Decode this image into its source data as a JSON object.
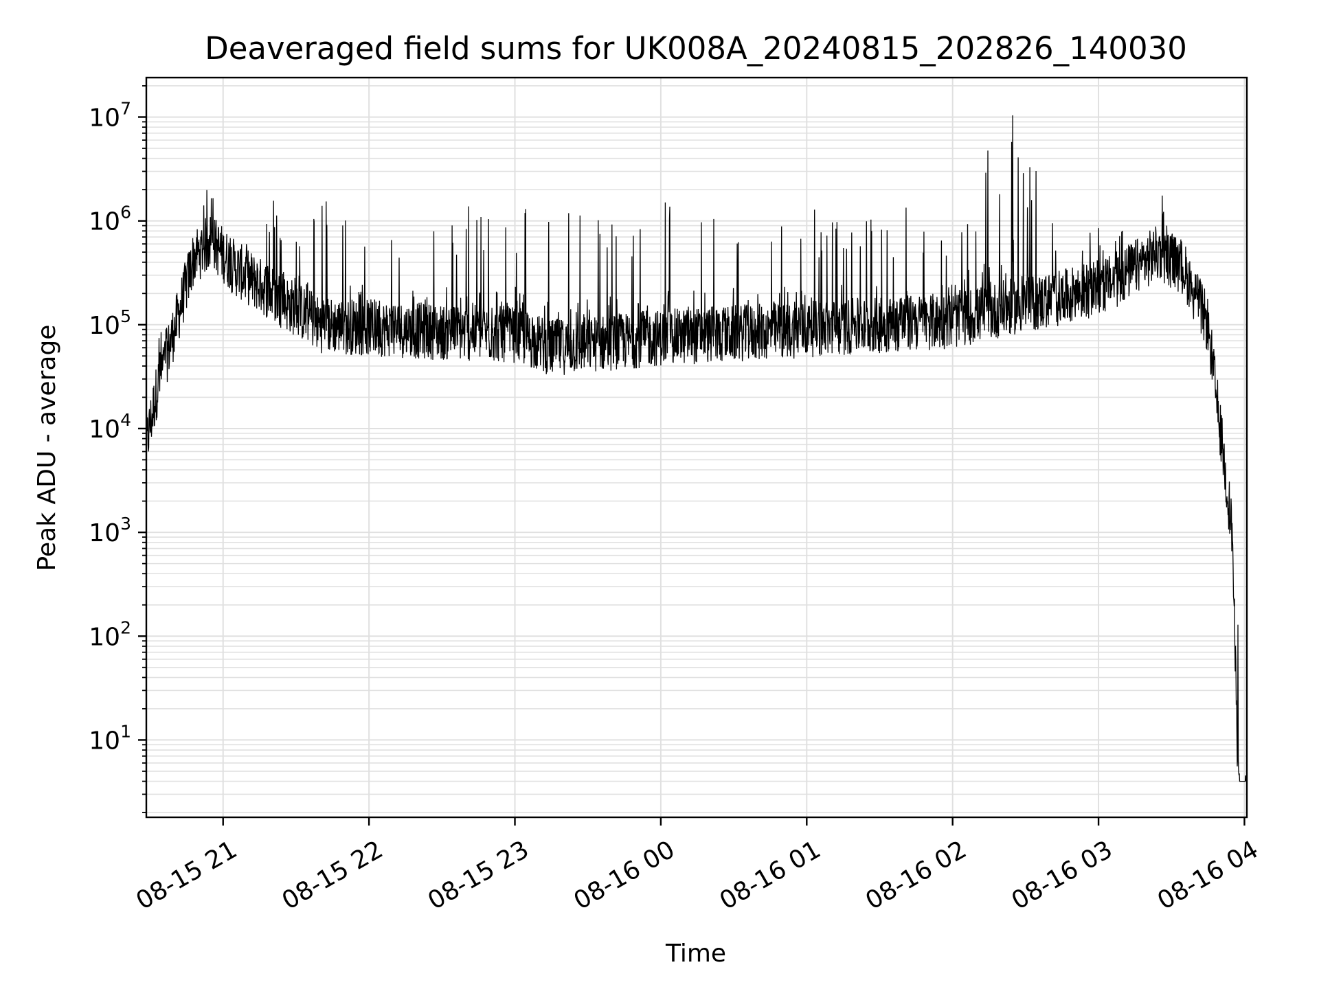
{
  "chart_data": {
    "type": "line",
    "title": "Deaveraged field sums for UK008A_20240815_202826_140030",
    "xlabel": "Time",
    "ylabel": "Peak ADU - average",
    "yscale": "log",
    "ylim": [
      1.8,
      24000000
    ],
    "xlim": [
      "2024-08-15 20:28:26",
      "2024-08-16 04:01:00"
    ],
    "grid": true,
    "grid_minor": true,
    "line_color": "#000000",
    "grid_color": "#e0e0e0",
    "x_ticks": [
      {
        "time": "2024-08-15 21:00",
        "label": "08-15 21"
      },
      {
        "time": "2024-08-15 22:00",
        "label": "08-15 22"
      },
      {
        "time": "2024-08-15 23:00",
        "label": "08-15 23"
      },
      {
        "time": "2024-08-16 00:00",
        "label": "08-16 00"
      },
      {
        "time": "2024-08-16 01:00",
        "label": "08-16 01"
      },
      {
        "time": "2024-08-16 02:00",
        "label": "08-16 02"
      },
      {
        "time": "2024-08-16 03:00",
        "label": "08-16 03"
      },
      {
        "time": "2024-08-16 04:00",
        "label": "08-16 04"
      }
    ],
    "y_ticks": [
      {
        "value": 10,
        "base": "10",
        "exp": "1"
      },
      {
        "value": 100,
        "base": "10",
        "exp": "2"
      },
      {
        "value": 1000,
        "base": "10",
        "exp": "3"
      },
      {
        "value": 10000,
        "base": "10",
        "exp": "4"
      },
      {
        "value": 100000,
        "base": "10",
        "exp": "5"
      },
      {
        "value": 1000000,
        "base": "10",
        "exp": "6"
      },
      {
        "value": 10000000,
        "base": "10",
        "exp": "7"
      }
    ],
    "series_envelope": {
      "description_points": [
        {
          "time": "2024-08-15 20:28:26",
          "baseline": 7000,
          "peak": 9000
        },
        {
          "time": "2024-08-15 20:33",
          "baseline": 25000,
          "peak": 90000
        },
        {
          "time": "2024-08-15 20:40",
          "baseline": 90000,
          "peak": 160000
        },
        {
          "time": "2024-08-15 20:48",
          "baseline": 450000,
          "peak": 700000
        },
        {
          "time": "2024-08-15 20:55",
          "baseline": 650000,
          "peak": 3100000
        },
        {
          "time": "2024-08-15 21:05",
          "baseline": 350000,
          "peak": 600000
        },
        {
          "time": "2024-08-15 21:20",
          "baseline": 200000,
          "peak": 1700000
        },
        {
          "time": "2024-08-15 21:40",
          "baseline": 100000,
          "peak": 1700000
        },
        {
          "time": "2024-08-15 22:30",
          "baseline": 85000,
          "peak": 1500000
        },
        {
          "time": "2024-08-15 23:00",
          "baseline": 80000,
          "peak": 1900000
        },
        {
          "time": "2024-08-15 23:15",
          "baseline": 60000,
          "peak": 1400000
        },
        {
          "time": "2024-08-16 00:00",
          "baseline": 75000,
          "peak": 1700000
        },
        {
          "time": "2024-08-16 01:00",
          "baseline": 90000,
          "peak": 1500000
        },
        {
          "time": "2024-08-16 02:00",
          "baseline": 110000,
          "peak": 1500000
        },
        {
          "time": "2024-08-16 02:25",
          "baseline": 150000,
          "peak": 11000000
        },
        {
          "time": "2024-08-16 02:45",
          "baseline": 180000,
          "peak": 800000
        },
        {
          "time": "2024-08-16 03:05",
          "baseline": 250000,
          "peak": 900000
        },
        {
          "time": "2024-08-16 03:25",
          "baseline": 500000,
          "peak": 2300000
        },
        {
          "time": "2024-08-16 03:35",
          "baseline": 350000,
          "peak": 400000
        },
        {
          "time": "2024-08-16 03:45",
          "baseline": 100000,
          "peak": 110000
        },
        {
          "time": "2024-08-16 03:50",
          "baseline": 10000,
          "peak": 12000
        },
        {
          "time": "2024-08-16 03:55",
          "baseline": 1000,
          "peak": 1200
        },
        {
          "time": "2024-08-16 03:57",
          "baseline": 10,
          "peak": 200
        },
        {
          "time": "2024-08-16 04:01",
          "baseline": 4,
          "peak": 4.5
        }
      ]
    }
  }
}
